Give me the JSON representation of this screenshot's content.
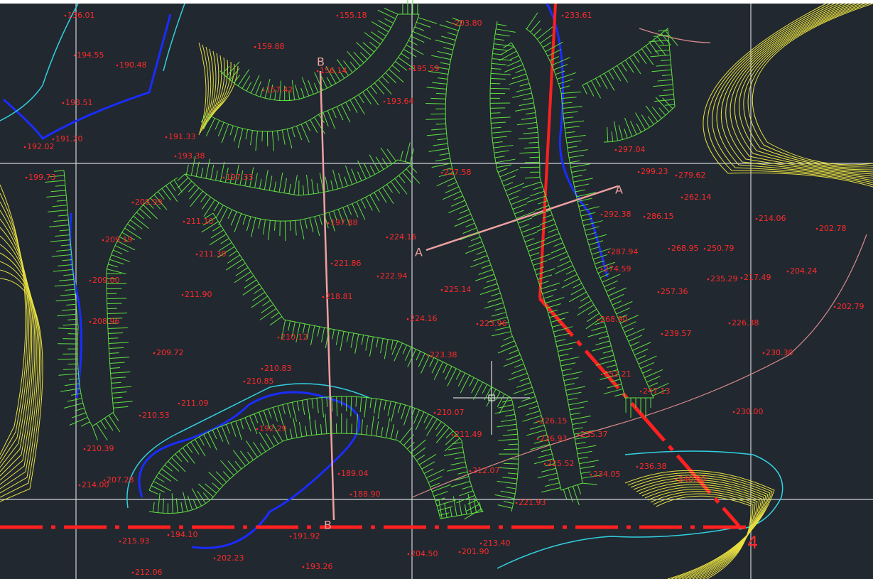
{
  "elevations": [
    "136.01",
    "194.55",
    "190.48",
    "193.51",
    "191.20",
    "192.02",
    "199.73",
    "208.99",
    "209.19",
    "209.00",
    "208.96",
    "209.72",
    "210.53",
    "210.39",
    "207.28",
    "214.00",
    "211.09",
    "210.83",
    "210.85",
    "211.90",
    "211.30",
    "211.10",
    "221.86",
    "222.94",
    "225.14",
    "224.16",
    "224.16",
    "223.96",
    "223.38",
    "218.81",
    "155.18",
    "159.88",
    "157.42",
    "193.64",
    "195.59",
    "203.80",
    "233.61",
    "191.33",
    "193.38",
    "299.23",
    "279.62",
    "262.14",
    "286.15",
    "292.38",
    "268.95",
    "250.79",
    "214.06",
    "202.78",
    "204.24",
    "235.29",
    "217.49",
    "257.36",
    "202.79",
    "226.38",
    "239.57",
    "230.30",
    "230.00",
    "236.38",
    "240.00",
    "287.94",
    "274.59",
    "268.90",
    "252.21",
    "247.13",
    "226.15",
    "226.93",
    "235.37",
    "225.52",
    "234.05",
    "211.49",
    "212.07",
    "221.93",
    "213.40",
    "201.90",
    "188.90",
    "189.04",
    "192.29",
    "191.92",
    "194.10",
    "215.93",
    "212.06",
    "202.23",
    "193.26",
    "204.50",
    "210.07",
    "297.04",
    "156.14",
    "197.88",
    "197.33",
    "227.58",
    "210.12"
  ],
  "section_labels": [
    "A",
    "A",
    "B",
    "B"
  ],
  "station_mark": "4"
}
